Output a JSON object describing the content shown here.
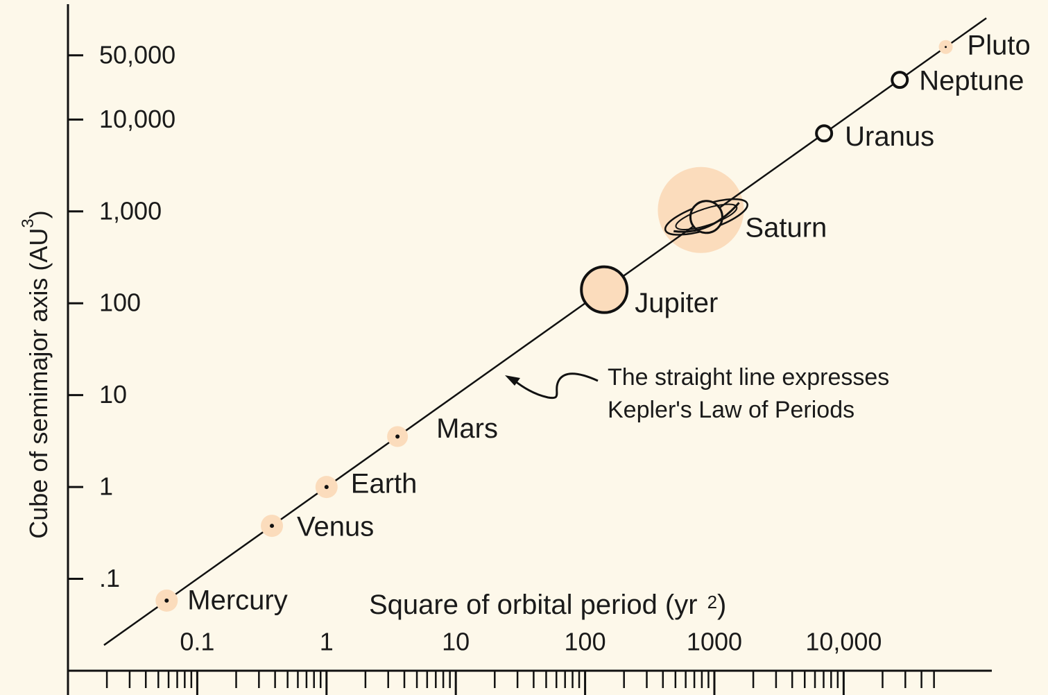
{
  "chart_data": {
    "type": "scatter",
    "xlabel": {
      "text": "Square of orbital period (yr",
      "sup": "2",
      "end": ")"
    },
    "ylabel": {
      "text": "Cube of semimajor axis (AU",
      "sup": "3",
      "end": ")"
    },
    "xscale": "log",
    "yscale": "log",
    "xlim": [
      0.01,
      140000
    ],
    "ylim": [
      0.01,
      200000
    ],
    "xticks": [
      0.1,
      1,
      10,
      100,
      1000,
      {
        "value": 10000,
        "label": "10,000"
      }
    ],
    "yticks": [
      {
        "value": 0.1,
        "label": ".1"
      },
      1,
      10,
      100,
      {
        "value": 1000,
        "label": "1,000"
      },
      {
        "value": 10000,
        "label": "10,000"
      },
      {
        "value": 50000,
        "label": "50,000"
      }
    ],
    "color": "#fbdcbc",
    "series": [
      {
        "names": [
          "Mercury",
          "Venus",
          "Earth",
          "Mars",
          "Jupiter",
          "Saturn",
          "Uranus",
          "Neptune",
          "Pluto"
        ],
        "x": [
          0.058,
          0.378,
          1,
          3.54,
          140.7,
          867,
          7056,
          27160,
          61600
        ],
        "values": [
          0.058,
          0.378,
          1,
          3.54,
          140.6,
          870,
          7066,
          27000,
          61600
        ]
      }
    ],
    "fit_line": {
      "x": [
        0.019,
        127000
      ],
      "values": [
        0.019,
        127000
      ]
    },
    "annotation": [
      "The straight line expresses",
      "Kepler's Law of Periods"
    ]
  }
}
